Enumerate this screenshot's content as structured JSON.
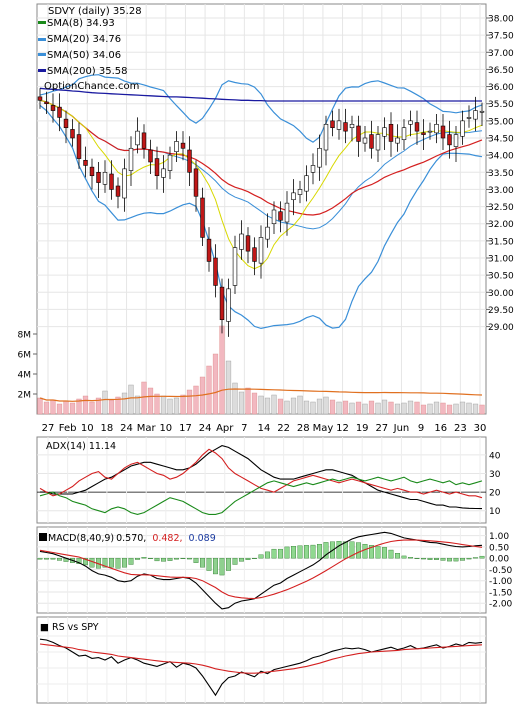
{
  "chart_data": [
    {
      "type": "candlestick",
      "title": "SDVY (daily) 35.28",
      "watermark": "OptionChance.com",
      "legend_position": "top-left",
      "legend": [
        {
          "label": "SMA(8) 34.93",
          "color": "#f0f000"
        },
        {
          "label": "SMA(20) 34.76",
          "color": "#3a8fd8"
        },
        {
          "label": "SMA(50) 34.06",
          "color": "#d42020"
        },
        {
          "label": "SMA(200) 35.58",
          "color": "#1a1aa0"
        }
      ],
      "ylim": [
        28.3,
        38.3
      ],
      "y_ticks": [
        "38.00",
        "37.50",
        "37.00",
        "36.50",
        "36.00",
        "35.50",
        "35.00",
        "34.50",
        "34.00",
        "33.50",
        "33.00",
        "32.50",
        "32.00",
        "31.50",
        "31.00",
        "30.50",
        "30.00",
        "29.50",
        "29.00"
      ],
      "x_ticks": [
        "27",
        "Feb",
        "10",
        "18",
        "24",
        "Mar",
        "10",
        "17",
        "24",
        "Apr",
        "7",
        "14",
        "22",
        "28",
        "May",
        "12",
        "19",
        "27",
        "Jun",
        "9",
        "16",
        "23",
        "30"
      ],
      "closes": [
        35.6,
        35.5,
        35.3,
        35.1,
        34.8,
        34.5,
        33.9,
        33.7,
        33.4,
        33.2,
        33.5,
        33.0,
        32.8,
        33.6,
        34.2,
        34.7,
        34.2,
        33.8,
        33.4,
        33.6,
        34.0,
        34.4,
        34.2,
        33.5,
        32.8,
        31.6,
        30.9,
        30.2,
        29.2,
        30.1,
        31.3,
        31.7,
        31.2,
        30.9,
        31.6,
        31.9,
        32.4,
        32.1,
        32.6,
        32.9,
        33.0,
        33.4,
        33.7,
        34.2,
        34.9,
        34.8,
        35.0,
        34.7,
        34.9,
        34.4,
        34.5,
        34.2,
        34.6,
        34.8,
        34.4,
        34.5,
        34.8,
        35.0,
        34.7,
        34.6,
        34.7,
        34.9,
        34.5,
        34.3,
        34.6,
        35.0,
        35.1,
        35.3,
        35.28
      ],
      "sma200": [
        35.95,
        35.93,
        35.92,
        35.9,
        35.89,
        35.87,
        35.86,
        35.84,
        35.82,
        35.81,
        35.8,
        35.79,
        35.78,
        35.77,
        35.76,
        35.75,
        35.74,
        35.73,
        35.72,
        35.71,
        35.7,
        35.7,
        35.69,
        35.68,
        35.67,
        35.66,
        35.65,
        35.64,
        35.63,
        35.62,
        35.61,
        35.6,
        35.6,
        35.59,
        35.59,
        35.58,
        35.58,
        35.58,
        35.58,
        35.58,
        35.58,
        35.58,
        35.58,
        35.58,
        35.58,
        35.58,
        35.58,
        35.58,
        35.58,
        35.58,
        35.58,
        35.58,
        35.58,
        35.58,
        35.58,
        35.58,
        35.58,
        35.58,
        35.58,
        35.58,
        35.58,
        35.58,
        35.58,
        35.58,
        35.58,
        35.58,
        35.58,
        35.58,
        35.58
      ],
      "volume_axis": {
        "labels": [
          "8M",
          "6M",
          "4M",
          "2M"
        ],
        "ylim": [
          0,
          9
        ]
      },
      "volumes": [
        1.6,
        1.2,
        1.4,
        1.0,
        1.3,
        1.1,
        1.5,
        1.8,
        1.2,
        1.6,
        2.3,
        1.4,
        1.7,
        2.1,
        2.9,
        1.8,
        3.2,
        2.6,
        2.0,
        1.8,
        1.5,
        1.6,
        1.9,
        2.4,
        2.8,
        3.7,
        4.8,
        6.0,
        8.8,
        5.3,
        3.1,
        2.2,
        2.6,
        2.1,
        1.8,
        1.6,
        1.9,
        1.5,
        1.3,
        1.6,
        1.8,
        1.3,
        1.2,
        1.5,
        1.7,
        1.4,
        1.2,
        1.3,
        1.1,
        1.2,
        1.0,
        1.3,
        1.1,
        1.4,
        1.2,
        1.0,
        1.1,
        1.3,
        1.2,
        0.9,
        1.0,
        1.2,
        1.1,
        0.9,
        1.0,
        1.2,
        1.1,
        1.0,
        0.9
      ]
    },
    {
      "type": "line",
      "label": "ADX(14) 11.14",
      "ylim": [
        5,
        48
      ],
      "y_ticks": [
        "40",
        "30",
        "20",
        "10"
      ],
      "series": [
        {
          "color": "#000000",
          "values": [
            20,
            20,
            19,
            19,
            19,
            19,
            20,
            21,
            23,
            25,
            27,
            28,
            30,
            32,
            34,
            35,
            36,
            36,
            35,
            34,
            33,
            32,
            32,
            33,
            35,
            38,
            41,
            43,
            45,
            44,
            42,
            40,
            38,
            35,
            32,
            30,
            28,
            27,
            27,
            27,
            28,
            29,
            30,
            31,
            32,
            32,
            31,
            30,
            29,
            27,
            25,
            23,
            21,
            20,
            19,
            18,
            17,
            16,
            16,
            15,
            14,
            13,
            13,
            12,
            12,
            11.5,
            11.3,
            11.2,
            11.14
          ]
        },
        {
          "color": "#d42020",
          "values": [
            22,
            20,
            18,
            19,
            21,
            23,
            26,
            28,
            30,
            31,
            28,
            27,
            30,
            33,
            35,
            36,
            34,
            32,
            30,
            29,
            27,
            28,
            30,
            33,
            36,
            40,
            43,
            41,
            38,
            33,
            30,
            28,
            26,
            24,
            22,
            21,
            20,
            22,
            24,
            26,
            27,
            28,
            29,
            28,
            27,
            26,
            25,
            26,
            27,
            26,
            25,
            24,
            23,
            22,
            21,
            22,
            21,
            20,
            20,
            19,
            20,
            21,
            20,
            19,
            20,
            19,
            18,
            18,
            17
          ]
        },
        {
          "color": "#1a8a1a",
          "values": [
            18,
            19,
            20,
            18,
            17,
            15,
            14,
            13,
            11,
            10,
            9,
            11,
            12,
            11,
            9,
            8,
            9,
            11,
            13,
            15,
            17,
            16,
            15,
            13,
            11,
            9,
            8,
            8,
            9,
            12,
            15,
            17,
            19,
            21,
            23,
            25,
            26,
            25,
            24,
            23,
            24,
            25,
            24,
            25,
            26,
            27,
            26,
            27,
            28,
            27,
            26,
            27,
            28,
            27,
            26,
            27,
            28,
            26,
            25,
            26,
            27,
            26,
            25,
            26,
            24,
            25,
            24,
            25,
            26
          ]
        }
      ]
    },
    {
      "type": "bar",
      "label": "MACD(8,40,9)",
      "values_label": [
        "0.570,",
        "0.482,",
        "0.089"
      ],
      "value_colors": [
        "#000000",
        "#d42020",
        "#1a3aa0"
      ],
      "ylim": [
        -2.3,
        1.25
      ],
      "y_ticks": [
        "1.00",
        "0.50",
        "0.00",
        "-0.50",
        "-1.00",
        "-1.50",
        "-2.00"
      ],
      "macd": [
        0.3,
        0.25,
        0.2,
        0.1,
        0.0,
        -0.1,
        -0.2,
        -0.35,
        -0.55,
        -0.7,
        -0.75,
        -0.85,
        -1.0,
        -1.05,
        -1.0,
        -0.8,
        -0.7,
        -0.75,
        -0.9,
        -0.95,
        -0.95,
        -0.9,
        -0.85,
        -0.9,
        -1.1,
        -1.4,
        -1.7,
        -2.0,
        -2.25,
        -2.2,
        -2.0,
        -1.9,
        -1.85,
        -1.8,
        -1.6,
        -1.4,
        -1.2,
        -1.1,
        -0.9,
        -0.75,
        -0.6,
        -0.45,
        -0.3,
        -0.1,
        0.15,
        0.35,
        0.55,
        0.7,
        0.85,
        0.95,
        1.0,
        1.05,
        1.1,
        1.15,
        1.1,
        1.0,
        0.9,
        0.85,
        0.8,
        0.75,
        0.7,
        0.68,
        0.62,
        0.56,
        0.52,
        0.5,
        0.52,
        0.55,
        0.57
      ],
      "signal": [
        0.35,
        0.3,
        0.25,
        0.2,
        0.15,
        0.1,
        0.05,
        -0.05,
        -0.15,
        -0.25,
        -0.35,
        -0.45,
        -0.55,
        -0.65,
        -0.72,
        -0.74,
        -0.74,
        -0.75,
        -0.78,
        -0.81,
        -0.84,
        -0.85,
        -0.85,
        -0.86,
        -0.9,
        -1.0,
        -1.15,
        -1.3,
        -1.5,
        -1.65,
        -1.72,
        -1.76,
        -1.78,
        -1.79,
        -1.75,
        -1.68,
        -1.6,
        -1.5,
        -1.4,
        -1.28,
        -1.15,
        -1.02,
        -0.88,
        -0.72,
        -0.55,
        -0.38,
        -0.2,
        -0.03,
        0.12,
        0.26,
        0.38,
        0.48,
        0.58,
        0.67,
        0.74,
        0.78,
        0.8,
        0.81,
        0.8,
        0.79,
        0.77,
        0.75,
        0.72,
        0.69,
        0.65,
        0.6,
        0.56,
        0.52,
        0.482
      ],
      "histogram": [
        -0.05,
        -0.05,
        -0.05,
        -0.1,
        -0.15,
        -0.2,
        -0.25,
        -0.3,
        -0.4,
        -0.45,
        -0.4,
        -0.4,
        -0.45,
        -0.4,
        -0.28,
        -0.06,
        0.04,
        0.0,
        -0.12,
        -0.14,
        -0.11,
        -0.05,
        0.0,
        -0.04,
        -0.2,
        -0.4,
        -0.55,
        -0.7,
        -0.75,
        -0.55,
        -0.28,
        -0.14,
        -0.07,
        -0.01,
        0.15,
        0.28,
        0.4,
        0.4,
        0.5,
        0.53,
        0.55,
        0.57,
        0.58,
        0.62,
        0.7,
        0.73,
        0.75,
        0.73,
        0.73,
        0.69,
        0.62,
        0.57,
        0.52,
        0.48,
        0.36,
        0.22,
        0.1,
        0.04,
        0.0,
        -0.04,
        -0.07,
        -0.07,
        -0.1,
        -0.13,
        -0.13,
        -0.1,
        -0.04,
        0.03,
        0.089
      ]
    },
    {
      "type": "line",
      "label": "RS vs SPY",
      "ylim": [
        0,
        10
      ],
      "series": [
        {
          "color": "#000000",
          "values": [
            7.6,
            7.5,
            7.2,
            6.8,
            6.5,
            6.0,
            5.5,
            5.6,
            5.2,
            5.3,
            5.0,
            5.4,
            4.6,
            5.0,
            5.3,
            5.0,
            4.6,
            4.4,
            4.2,
            4.5,
            4.8,
            4.1,
            4.6,
            4.4,
            4.0,
            3.0,
            1.8,
            0.6,
            2.0,
            2.8,
            3.0,
            3.5,
            3.2,
            2.9,
            3.6,
            3.3,
            3.8,
            4.0,
            4.2,
            4.4,
            4.6,
            4.9,
            5.3,
            5.5,
            5.8,
            6.1,
            6.3,
            6.5,
            6.4,
            6.5,
            6.3,
            6.0,
            6.2,
            6.4,
            6.6,
            6.3,
            6.5,
            6.8,
            6.4,
            6.5,
            6.7,
            6.9,
            6.5,
            6.7,
            7.0,
            6.8,
            7.2,
            7.1,
            7.2
          ]
        },
        {
          "color": "#d42020",
          "values": [
            7.0,
            6.9,
            6.8,
            6.7,
            6.6,
            6.5,
            6.3,
            6.2,
            6.0,
            5.9,
            5.8,
            5.7,
            5.5,
            5.4,
            5.3,
            5.2,
            5.1,
            5.0,
            4.9,
            4.8,
            4.75,
            4.7,
            4.65,
            4.6,
            4.5,
            4.35,
            4.15,
            3.9,
            3.75,
            3.6,
            3.5,
            3.4,
            3.35,
            3.35,
            3.4,
            3.5,
            3.6,
            3.7,
            3.8,
            3.9,
            4.05,
            4.2,
            4.4,
            4.6,
            4.85,
            5.1,
            5.3,
            5.5,
            5.65,
            5.8,
            5.9,
            6.0,
            6.05,
            6.1,
            6.15,
            6.2,
            6.3,
            6.35,
            6.4,
            6.45,
            6.5,
            6.55,
            6.6,
            6.65,
            6.7,
            6.75,
            6.8,
            6.85,
            6.9
          ]
        }
      ]
    },
    {
      "type": "table",
      "label": "x-axis",
      "ticks": [
        "27",
        "Feb",
        "10",
        "18",
        "24",
        "Mar",
        "10",
        "17",
        "24",
        "Apr",
        "7",
        "14",
        "22",
        "28",
        "May",
        "12",
        "19",
        "27",
        "Jun",
        "9",
        "16",
        "23",
        "30"
      ]
    }
  ]
}
